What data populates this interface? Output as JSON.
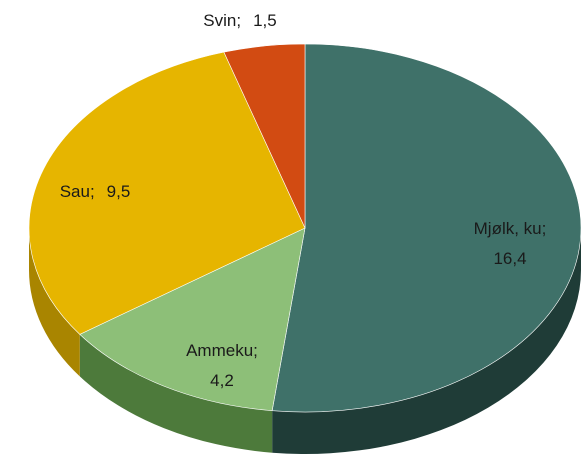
{
  "chart_data": {
    "type": "pie3d",
    "categories": [
      "Mjølk, ku",
      "Ammeku",
      "Sau",
      "Svin"
    ],
    "values": [
      16.4,
      4.2,
      9.5,
      1.5
    ],
    "value_labels": [
      "16,4",
      "4,2",
      "9,5",
      "1,5"
    ],
    "label_separator": ";",
    "colors": [
      "#3f7169",
      "#8dbf78",
      "#e6b500",
      "#d24b12"
    ],
    "side_colors": [
      "#1f3c37",
      "#4d7a3b",
      "#a98500",
      "#8a300a"
    ]
  }
}
